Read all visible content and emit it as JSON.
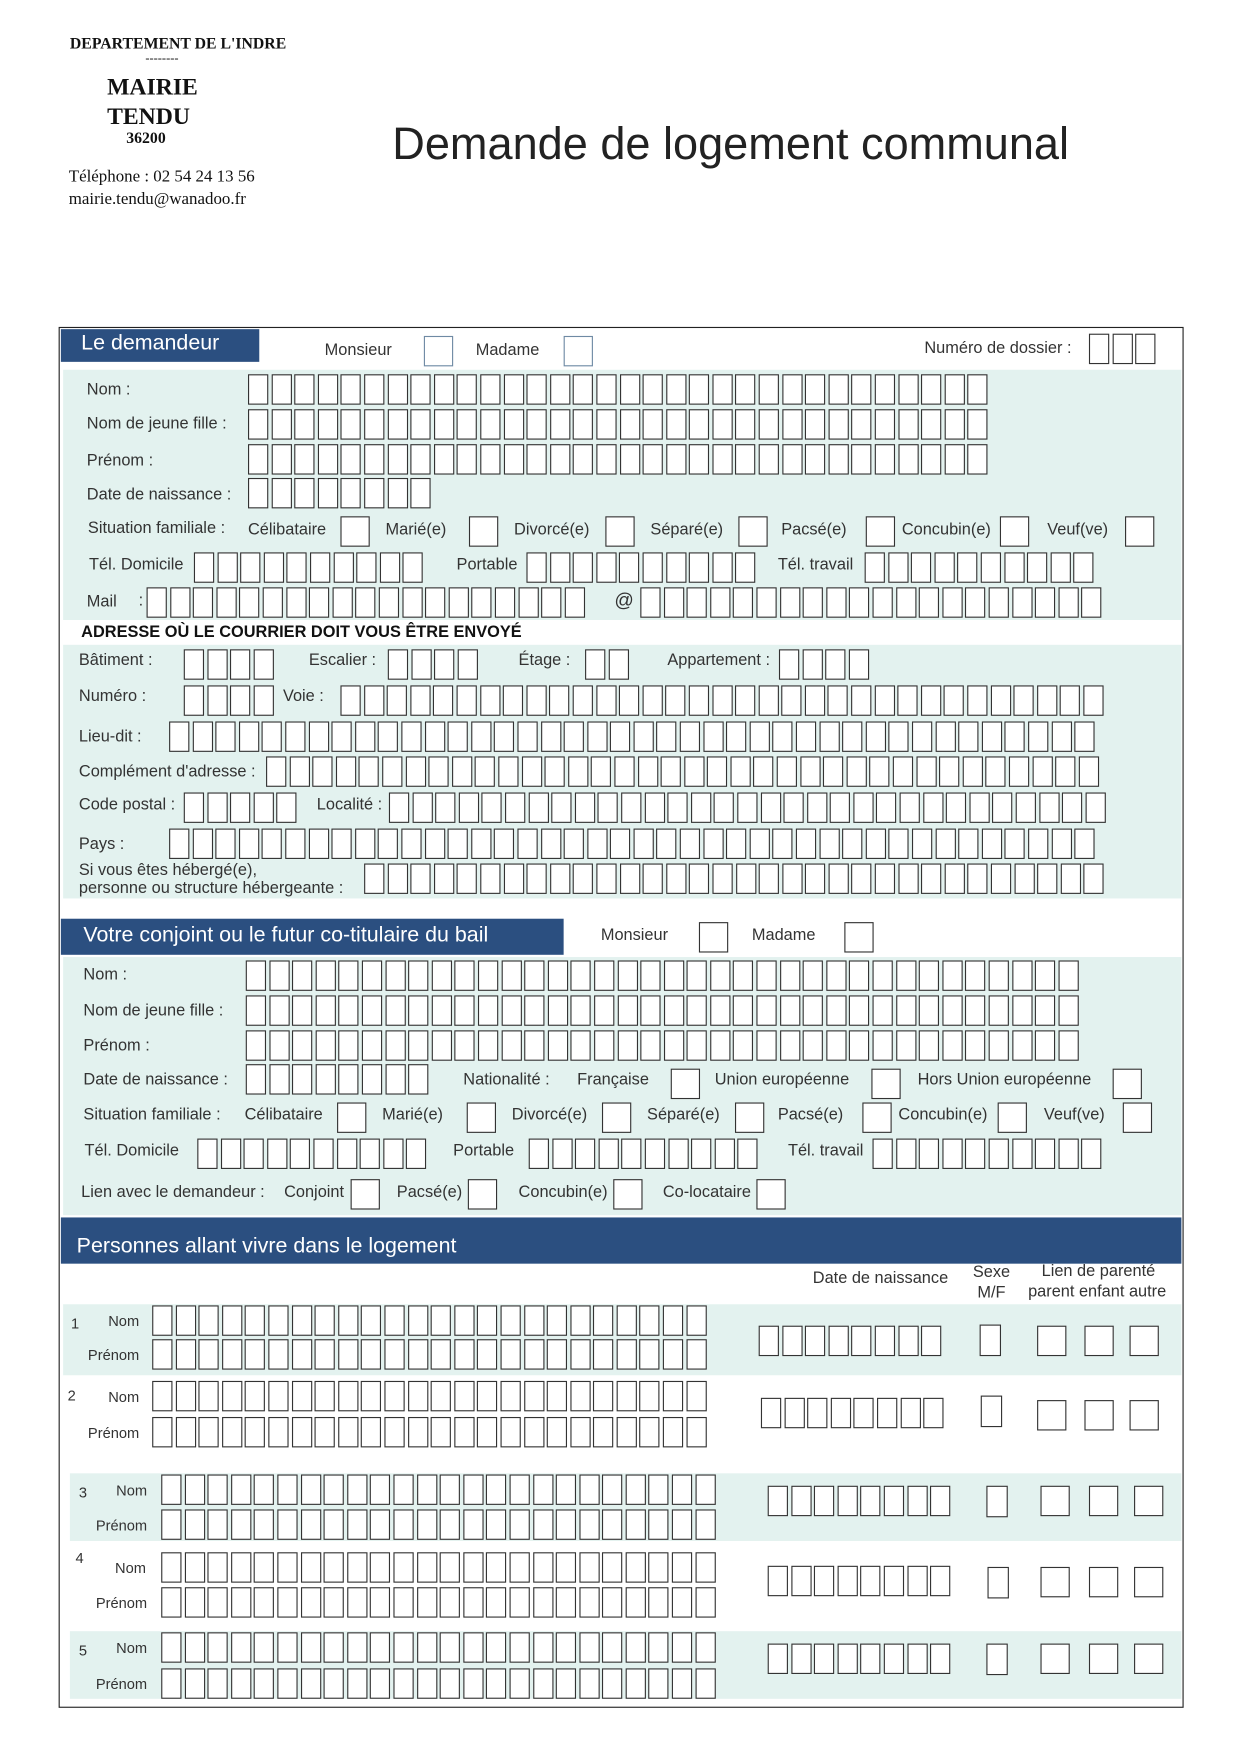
{
  "header": {
    "departement": "DEPARTEMENT DE L'INDRE",
    "separator": "--------",
    "mairie": "MAIRIE",
    "commune": "TENDU",
    "code_postal": "36200",
    "telephone": "Téléphone : 02 54 24 13 56",
    "email": "mairie.tendu@wanadoo.fr",
    "title": "Demande de logement communal"
  },
  "colors": {
    "navy": "#2b4f80",
    "light_band": "#e3f2ef"
  },
  "demandeur": {
    "title": "Le demandeur",
    "monsieur": "Monsieur",
    "madame": "Madame",
    "dossier": "Numéro de dossier :",
    "nom": "Nom :",
    "nom_jf": "Nom de jeune fille :",
    "prenom": "Prénom :",
    "date_naissance": "Date de naissance :",
    "situation": "Situation familiale :",
    "situations": [
      "Célibataire",
      "Marié(e)",
      "Divorcé(e)",
      "Séparé(e)",
      "Pacsé(e)",
      "Concubin(e)",
      "Veuf(ve)"
    ],
    "tel_domicile": "Tél. Domicile",
    "portable": "Portable",
    "tel_travail": "Tél. travail",
    "mail": "Mail",
    "mail_colon": ":",
    "at": "@"
  },
  "adresse": {
    "title": "ADRESSE OÙ LE COURRIER DOIT VOUS ÊTRE ENVOYÉ",
    "batiment": "Bâtiment :",
    "escalier": "Escalier :",
    "etage": "Étage :",
    "appartement": "Appartement :",
    "numero": "Numéro :",
    "voie": "Voie :",
    "lieu_dit": "Lieu-dit :",
    "complement": "Complément d'adresse :",
    "code_postal": "Code postal :",
    "localite": "Localité :",
    "pays": "Pays :",
    "heberge_1": "Si vous êtes hébergé(e),",
    "heberge_2": "personne ou structure hébergeante :"
  },
  "conjoint": {
    "title": "Votre conjoint ou le futur co-titulaire du bail",
    "monsieur": "Monsieur",
    "madame": "Madame",
    "nom": "Nom :",
    "nom_jf": "Nom de jeune fille :",
    "prenom": "Prénom :",
    "date_naissance": "Date de naissance :",
    "nationalite": "Nationalité :",
    "nationalites": [
      "Française",
      "Union européenne",
      "Hors Union européenne"
    ],
    "situation": "Situation familiale :",
    "situations": [
      "Célibataire",
      "Marié(e)",
      "Divorcé(e)",
      "Séparé(e)",
      "Pacsé(e)",
      "Concubin(e)",
      "Veuf(ve)"
    ],
    "tel_domicile": "Tél. Domicile",
    "portable": "Portable",
    "tel_travail": "Tél. travail",
    "lien": "Lien avec le demandeur :",
    "liens": [
      "Conjoint",
      "Pacsé(e)",
      "Concubin(e)",
      "Co-locataire"
    ]
  },
  "personnes": {
    "title": "Personnes allant vivre dans le logement",
    "date_naissance": "Date de naissance",
    "sexe_1": "Sexe",
    "sexe_2": "M/F",
    "lien_1": "Lien de parenté",
    "lien_2": "parent enfant autre",
    "nom": "Nom",
    "prenom": "Prénom",
    "rows": [
      "1",
      "2",
      "3",
      "4",
      "5"
    ]
  }
}
